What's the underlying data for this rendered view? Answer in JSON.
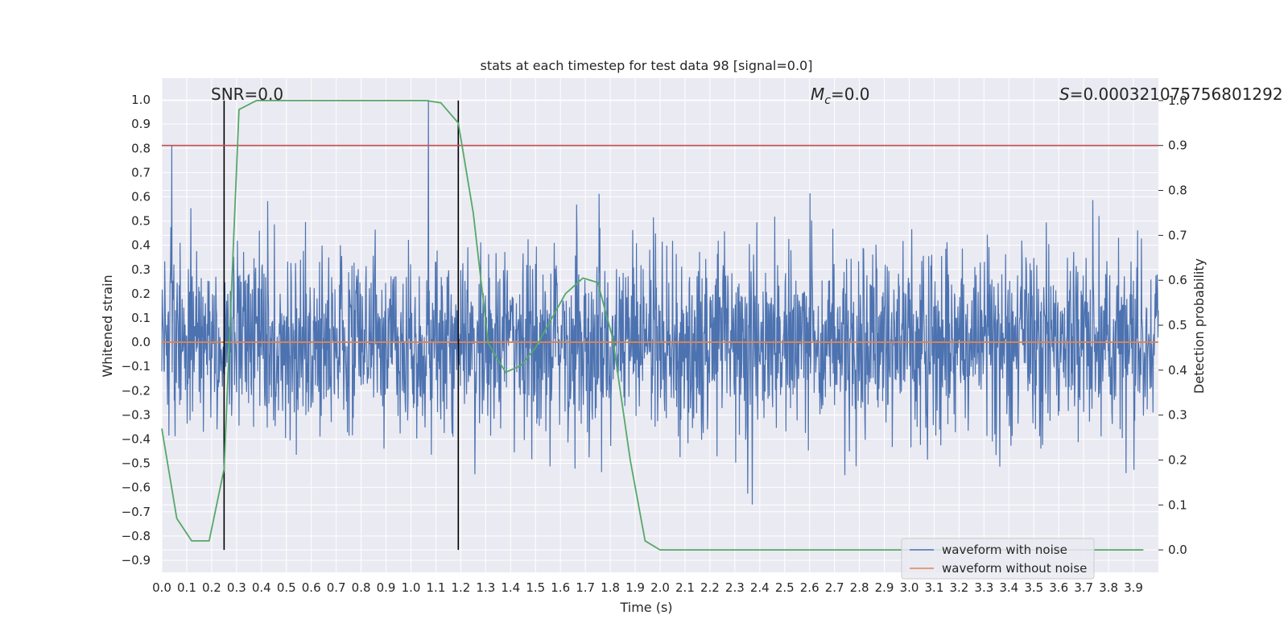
{
  "chart_data": {
    "type": "line",
    "title": "stats at each timestep for test data 98 [signal=0.0]",
    "xlabel": "Time (s)",
    "ylabel": "Whitened strain",
    "y2label": "Detection probability",
    "xlim": [
      0.0,
      4.0
    ],
    "ylim": [
      -0.95,
      1.09
    ],
    "y2lim": [
      -0.05,
      1.05
    ],
    "x_ticks": [
      "0.0",
      "0.1",
      "0.2",
      "0.3",
      "0.4",
      "0.5",
      "0.6",
      "0.7",
      "0.8",
      "0.9",
      "1.0",
      "1.1",
      "1.2",
      "1.3",
      "1.4",
      "1.5",
      "1.6",
      "1.7",
      "1.8",
      "1.9",
      "2.0",
      "2.1",
      "2.2",
      "2.3",
      "2.4",
      "2.5",
      "2.6",
      "2.7",
      "2.8",
      "2.9",
      "3.0",
      "3.1",
      "3.2",
      "3.3",
      "3.4",
      "3.5",
      "3.6",
      "3.7",
      "3.8",
      "3.9"
    ],
    "y_ticks": [
      "1.0",
      "0.9",
      "0.8",
      "0.7",
      "0.6",
      "0.5",
      "0.4",
      "0.3",
      "0.2",
      "0.1",
      "0.0",
      "-0.1",
      "-0.2",
      "-0.3",
      "-0.4",
      "-0.5",
      "-0.6",
      "-0.7",
      "-0.8",
      "-0.9"
    ],
    "y2_ticks": [
      "1.0",
      "0.9",
      "0.8",
      "0.7",
      "0.6",
      "0.5",
      "0.4",
      "0.3",
      "0.2",
      "0.1",
      "0.0"
    ],
    "grid": true,
    "legend_position": "bottom-right",
    "annotations": {
      "snr": "SNR=0.0",
      "mc_symbol": "M",
      "mc_subscript": "c",
      "mc_value": "=0.0",
      "s_symbol": "S",
      "s_value": "=0.000321075756801292"
    },
    "threshold_y2": 0.9,
    "vertical_markers_x": [
      0.25,
      1.19
    ],
    "series": [
      {
        "name": "waveform with noise",
        "color": "#4c72b0",
        "axis": "left",
        "description_values": {
          "typical_amplitude": 0.35,
          "max": 1.0,
          "min": -0.85
        }
      },
      {
        "name": "waveform without noise",
        "color": "#dd8452",
        "axis": "left",
        "x": [
          0.0,
          4.0
        ],
        "y": [
          0.0,
          0.0
        ]
      },
      {
        "name": "detection probability",
        "color": "#55a868",
        "axis": "right",
        "x": [
          0.0,
          0.06,
          0.12,
          0.19,
          0.25,
          0.31,
          0.38,
          0.44,
          0.5,
          0.56,
          0.62,
          0.69,
          0.75,
          0.81,
          0.88,
          0.94,
          1.0,
          1.06,
          1.12,
          1.19,
          1.25,
          1.31,
          1.38,
          1.44,
          1.5,
          1.56,
          1.62,
          1.69,
          1.75,
          1.81,
          1.88,
          1.94,
          2.0,
          2.06,
          2.5,
          3.0,
          3.5,
          3.94
        ],
        "y": [
          0.27,
          0.07,
          0.02,
          0.02,
          0.18,
          0.98,
          1.0,
          1.0,
          1.0,
          1.0,
          1.0,
          1.0,
          1.0,
          1.0,
          1.0,
          1.0,
          1.0,
          1.0,
          0.995,
          0.95,
          0.75,
          0.46,
          0.395,
          0.41,
          0.45,
          0.51,
          0.57,
          0.605,
          0.595,
          0.47,
          0.2,
          0.02,
          0.0,
          0.0,
          0.0,
          0.0,
          0.0,
          0.0
        ]
      }
    ],
    "colors": {
      "plot_background": "#eaeaf2",
      "grid": "#ffffff",
      "threshold": "#c44e52",
      "marker": "#000000"
    }
  }
}
